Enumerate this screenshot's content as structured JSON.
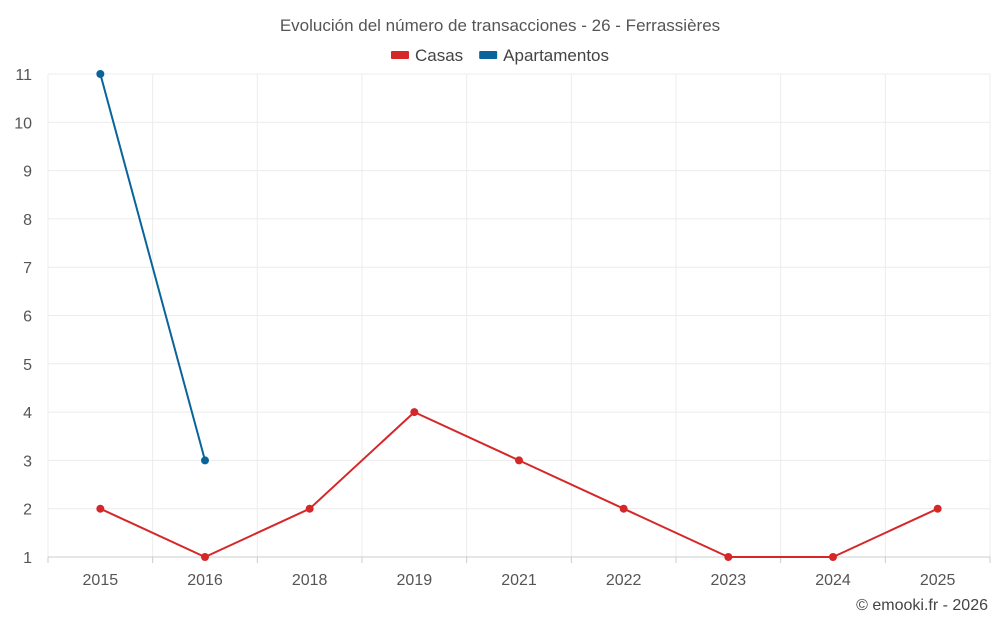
{
  "chart_data": {
    "type": "line",
    "title": "Evolución del número de transacciones - 26 - Ferrassières",
    "categories": [
      "2015",
      "2016",
      "2018",
      "2019",
      "2021",
      "2022",
      "2023",
      "2024",
      "2025"
    ],
    "series": [
      {
        "name": "Casas",
        "color": "#d62728",
        "values": [
          2,
          1,
          2,
          4,
          3,
          2,
          1,
          1,
          2
        ]
      },
      {
        "name": "Apartamentos",
        "color": "#08649a",
        "values": [
          11,
          3,
          null,
          null,
          null,
          null,
          null,
          null,
          null
        ]
      }
    ],
    "y_ticks": [
      1,
      2,
      3,
      4,
      5,
      6,
      7,
      8,
      9,
      10,
      11
    ],
    "ylim": [
      1,
      11
    ],
    "legend_position": "top-center",
    "grid": true
  },
  "credit": "© emooki.fr - 2026"
}
